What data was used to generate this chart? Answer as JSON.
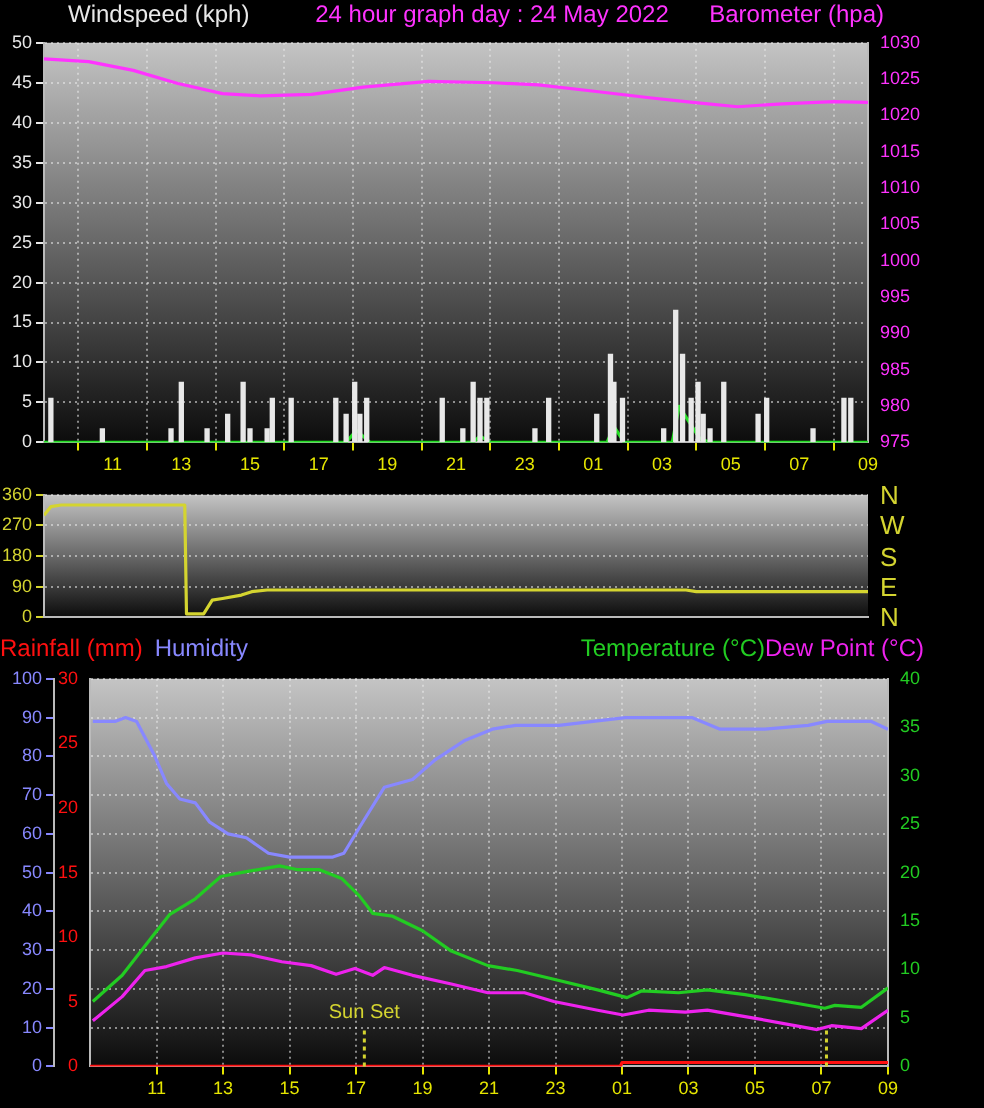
{
  "chart_data": [
    {
      "type": "line",
      "title": "24 hour graph day : 24 May 2022",
      "ylabel": "Windspeed (kph)",
      "y2label": "Barometer (hpa)",
      "xlim": [
        "2022-05-23T09:00",
        "2022-05-24T09:00"
      ],
      "xticks": [
        {
          "value": "2022-05-23T11:00",
          "label": "11"
        },
        {
          "value": "2022-05-23T13:00",
          "label": "13"
        },
        {
          "value": "2022-05-23T15:00",
          "label": "15"
        },
        {
          "value": "2022-05-23T17:00",
          "label": "17"
        },
        {
          "value": "2022-05-23T19:00",
          "label": "19"
        },
        {
          "value": "2022-05-23T21:00",
          "label": "21"
        },
        {
          "value": "2022-05-23T23:00",
          "label": "23"
        },
        {
          "value": "2022-05-24T01:00",
          "label": "01"
        },
        {
          "value": "2022-05-24T03:00",
          "label": "03"
        },
        {
          "value": "2022-05-24T05:00",
          "label": "05"
        },
        {
          "value": "2022-05-24T07:00",
          "label": "07"
        },
        {
          "value": "2022-05-24T09:00",
          "label": "09"
        }
      ],
      "ylim": [
        0,
        50
      ],
      "yticks": [
        0,
        5,
        10,
        15,
        20,
        25,
        30,
        35,
        40,
        45,
        50
      ],
      "y2lim": [
        975,
        1030
      ],
      "y2ticks": [
        975,
        980,
        985,
        990,
        995,
        1000,
        1005,
        1010,
        1015,
        1020,
        1025,
        1030
      ],
      "grid": true,
      "series": [
        {
          "type": "bar",
          "color": "#e8e8e8",
          "x": [
            "2022-05-23T09:12",
            "2022-05-23T10:42",
            "2022-05-23T12:42",
            "2022-05-23T13:00",
            "2022-05-23T13:45",
            "2022-05-23T14:21",
            "2022-05-23T14:48",
            "2022-05-23T15:00",
            "2022-05-23T15:30",
            "2022-05-23T15:39",
            "2022-05-23T16:12",
            "2022-05-23T17:30",
            "2022-05-23T17:48",
            "2022-05-23T18:03",
            "2022-05-23T18:12",
            "2022-05-23T18:24",
            "2022-05-23T20:36",
            "2022-05-23T21:12",
            "2022-05-23T21:30",
            "2022-05-23T21:42",
            "2022-05-23T21:54",
            "2022-05-23T23:18",
            "2022-05-23T23:42",
            "2022-05-24T01:06",
            "2022-05-24T01:30",
            "2022-05-24T01:36",
            "2022-05-24T01:51",
            "2022-05-24T03:03",
            "2022-05-24T03:24",
            "2022-05-24T03:36",
            "2022-05-24T03:51",
            "2022-05-24T04:03",
            "2022-05-24T04:12",
            "2022-05-24T04:24",
            "2022-05-24T04:48",
            "2022-05-24T05:48",
            "2022-05-24T06:03",
            "2022-05-24T07:24",
            "2022-05-24T08:18",
            "2022-05-24T08:30"
          ],
          "values": [
            5.5,
            1.7,
            1.7,
            7.5,
            1.7,
            3.5,
            7.5,
            1.7,
            1.7,
            5.5,
            5.5,
            5.5,
            3.5,
            7.5,
            3.5,
            5.5,
            5.5,
            1.7,
            7.5,
            5.5,
            5.5,
            1.7,
            5.5,
            3.5,
            11,
            7.5,
            5.5,
            1.7,
            16.5,
            11,
            5.5,
            7.5,
            3.5,
            1.7,
            7.5,
            3.5,
            5.5,
            1.7,
            5.5,
            5.5
          ]
        },
        {
          "color": "#22dd22",
          "x": [
            "2022-05-23T09:00",
            "2022-05-23T17:48",
            "2022-05-23T18:06",
            "2022-05-23T18:30",
            "2022-05-23T21:30",
            "2022-05-23T21:42",
            "2022-05-23T22:00",
            "2022-05-24T01:24",
            "2022-05-24T01:36",
            "2022-05-24T01:54",
            "2022-05-24T03:18",
            "2022-05-24T03:30",
            "2022-05-24T03:48",
            "2022-05-24T04:06",
            "2022-05-24T04:24",
            "2022-05-24T09:00"
          ],
          "values": [
            0,
            0,
            1.5,
            0,
            0,
            0.8,
            0,
            0,
            2,
            0,
            0,
            4.5,
            2.5,
            0.5,
            0,
            0
          ]
        },
        {
          "axis": "y2",
          "color": "#ff33ff",
          "x": [
            "2022-05-23T09:00",
            "2022-05-23T10:18",
            "2022-05-23T11:36",
            "2022-05-23T12:54",
            "2022-05-23T14:12",
            "2022-05-23T15:18",
            "2022-05-23T16:48",
            "2022-05-23T18:18",
            "2022-05-23T20:12",
            "2022-05-23T22:06",
            "2022-05-23T23:24",
            "2022-05-24T00:54",
            "2022-05-24T02:42",
            "2022-05-24T03:54",
            "2022-05-24T05:12",
            "2022-05-24T06:30",
            "2022-05-24T08:00",
            "2022-05-24T09:00"
          ],
          "values": [
            1027.8,
            1027.4,
            1026.2,
            1024.4,
            1023.0,
            1022.7,
            1022.9,
            1023.9,
            1024.7,
            1024.5,
            1024.2,
            1023.4,
            1022.4,
            1021.8,
            1021.2,
            1021.6,
            1021.9,
            1021.8
          ]
        }
      ]
    },
    {
      "type": "line",
      "xlim": [
        "2022-05-23T09:00",
        "2022-05-24T09:00"
      ],
      "ylim": [
        0,
        360
      ],
      "yticks": [
        0,
        90,
        180,
        270,
        360
      ],
      "grid": "y",
      "tick_labels": "y",
      "annotations": [
        "N",
        "W",
        "S",
        "E",
        "N"
      ],
      "series": [
        {
          "color": "#d4d430",
          "x": [
            "2022-05-23T09:00",
            "2022-05-23T09:12",
            "2022-05-23T09:30",
            "2022-05-23T13:06",
            "2022-05-23T13:09",
            "2022-05-23T13:39",
            "2022-05-23T13:54",
            "2022-05-23T14:12",
            "2022-05-23T14:45",
            "2022-05-23T15:03",
            "2022-05-23T15:30",
            "2022-05-24T03:42",
            "2022-05-24T04:00",
            "2022-05-24T09:00"
          ],
          "values": [
            300,
            325,
            330,
            330,
            10,
            10,
            50,
            55,
            65,
            75,
            80,
            80,
            75,
            75
          ]
        }
      ]
    },
    {
      "type": "line",
      "xlim": [
        "2022-05-23T09:00",
        "2022-05-24T09:00"
      ],
      "xticks": [
        {
          "value": "2022-05-23T11:00",
          "label": "11"
        },
        {
          "value": "2022-05-23T13:00",
          "label": "13"
        },
        {
          "value": "2022-05-23T15:00",
          "label": "15"
        },
        {
          "value": "2022-05-23T17:00",
          "label": "17"
        },
        {
          "value": "2022-05-23T19:00",
          "label": "19"
        },
        {
          "value": "2022-05-23T21:00",
          "label": "21"
        },
        {
          "value": "2022-05-23T23:00",
          "label": "23"
        },
        {
          "value": "2022-05-24T01:00",
          "label": "01"
        },
        {
          "value": "2022-05-24T03:00",
          "label": "03"
        },
        {
          "value": "2022-05-24T05:00",
          "label": "05"
        },
        {
          "value": "2022-05-24T07:00",
          "label": "07"
        },
        {
          "value": "2022-05-24T09:00",
          "label": "09"
        }
      ],
      "ylim": [
        0,
        100
      ],
      "yticks": [
        0,
        10,
        20,
        30,
        40,
        50,
        60,
        70,
        80,
        90,
        100
      ],
      "y3lim": [
        0,
        30
      ],
      "y3ticks": [
        0,
        5,
        10,
        15,
        20,
        25,
        30
      ],
      "y2lim": [
        0,
        40
      ],
      "y2ticks": [
        0,
        5,
        10,
        15,
        20,
        25,
        30,
        35,
        40
      ],
      "grid": true,
      "ref_lines": [
        {
          "axis": "x",
          "value": "2022-05-23T17:15",
          "label": "Sun Set",
          "color": "#d4d430",
          "line_style": "dotted"
        },
        {
          "axis": "x",
          "value": "2022-05-24T07:09",
          "label": null,
          "color": "#d4d430",
          "line_style": "dotted"
        }
      ],
      "series": [
        {
          "name": "Rainfall (mm)",
          "axis": "y3",
          "color": "#ff1010",
          "x": [
            "2022-05-23T09:00",
            "2022-05-24T00:57",
            "2022-05-24T01:00",
            "2022-05-24T09:00"
          ],
          "values": [
            0,
            0,
            0.3,
            0.3
          ]
        },
        {
          "name": "Humidity",
          "color": "#8888ff",
          "x": [
            "2022-05-23T09:05",
            "2022-05-23T09:45",
            "2022-05-23T10:04",
            "2022-05-23T10:24",
            "2022-05-23T10:57",
            "2022-05-23T11:18",
            "2022-05-23T11:42",
            "2022-05-23T12:10",
            "2022-05-23T12:36",
            "2022-05-23T13:09",
            "2022-05-23T13:42",
            "2022-05-23T14:22",
            "2022-05-23T15:00",
            "2022-05-23T15:39",
            "2022-05-23T16:18",
            "2022-05-23T16:38",
            "2022-05-23T17:12",
            "2022-05-23T17:51",
            "2022-05-23T18:42",
            "2022-05-23T19:22",
            "2022-05-23T20:15",
            "2022-05-23T21:06",
            "2022-05-23T21:48",
            "2022-05-23T23:06",
            "2022-05-24T01:06",
            "2022-05-24T03:06",
            "2022-05-24T03:57",
            "2022-05-24T05:18",
            "2022-05-24T06:36",
            "2022-05-24T07:10",
            "2022-05-24T08:30",
            "2022-05-24T09:00"
          ],
          "values": [
            89,
            89,
            90,
            89,
            80,
            73,
            69,
            68,
            63,
            60,
            59,
            55,
            54,
            54,
            54,
            55,
            63,
            72,
            74,
            79,
            84,
            87,
            88,
            88,
            90,
            90,
            87,
            87,
            88,
            89,
            89,
            87
          ]
        },
        {
          "name": "Temperature (°C)",
          "axis": "y2",
          "color": "#22cc22",
          "x": [
            "2022-05-23T09:05",
            "2022-05-23T09:58",
            "2022-05-23T10:51",
            "2022-05-23T11:24",
            "2022-05-23T12:10",
            "2022-05-23T12:56",
            "2022-05-23T13:42",
            "2022-05-23T14:42",
            "2022-05-23T15:15",
            "2022-05-23T15:54",
            "2022-05-23T16:34",
            "2022-05-23T17:06",
            "2022-05-23T17:30",
            "2022-05-23T18:06",
            "2022-05-23T19:00",
            "2022-05-23T19:52",
            "2022-05-23T20:58",
            "2022-05-23T21:51",
            "2022-05-23T22:57",
            "2022-05-24T00:16",
            "2022-05-24T01:09",
            "2022-05-24T01:36",
            "2022-05-24T02:42",
            "2022-05-24T03:34",
            "2022-05-24T04:42",
            "2022-05-24T05:46",
            "2022-05-24T07:06",
            "2022-05-24T07:24",
            "2022-05-24T08:12",
            "2022-05-24T09:00"
          ],
          "values": [
            6.7,
            9.4,
            13.3,
            15.7,
            17.3,
            19.6,
            20.1,
            20.7,
            20.3,
            20.3,
            19.4,
            17.6,
            15.8,
            15.5,
            14.0,
            11.9,
            10.4,
            9.9,
            9.0,
            7.9,
            7.1,
            7.8,
            7.6,
            7.9,
            7.4,
            6.8,
            6.0,
            6.3,
            6.1,
            8.1
          ]
        },
        {
          "name": "Dew Point (°C)",
          "axis": "y2",
          "color": "#ee22ee",
          "x": [
            "2022-05-23T09:05",
            "2022-05-23T09:58",
            "2022-05-23T10:39",
            "2022-05-23T11:18",
            "2022-05-23T12:10",
            "2022-05-23T13:00",
            "2022-05-23T13:51",
            "2022-05-23T14:46",
            "2022-05-23T15:39",
            "2022-05-23T16:24",
            "2022-05-23T16:58",
            "2022-05-23T17:30",
            "2022-05-23T17:51",
            "2022-05-23T18:42",
            "2022-05-23T19:52",
            "2022-05-23T20:58",
            "2022-05-23T22:04",
            "2022-05-23T22:57",
            "2022-05-24T00:16",
            "2022-05-24T01:02",
            "2022-05-24T01:48",
            "2022-05-24T02:54",
            "2022-05-24T03:34",
            "2022-05-24T05:06",
            "2022-05-24T06:52",
            "2022-05-24T07:18",
            "2022-05-24T08:12",
            "2022-05-24T09:00"
          ],
          "values": [
            4.7,
            7.2,
            9.9,
            10.3,
            11.2,
            11.7,
            11.5,
            10.8,
            10.4,
            9.5,
            10.1,
            9.4,
            10.2,
            9.4,
            8.5,
            7.6,
            7.6,
            6.7,
            5.8,
            5.3,
            5.8,
            5.6,
            5.8,
            4.9,
            3.8,
            4.2,
            3.9,
            5.8
          ]
        }
      ]
    }
  ]
}
